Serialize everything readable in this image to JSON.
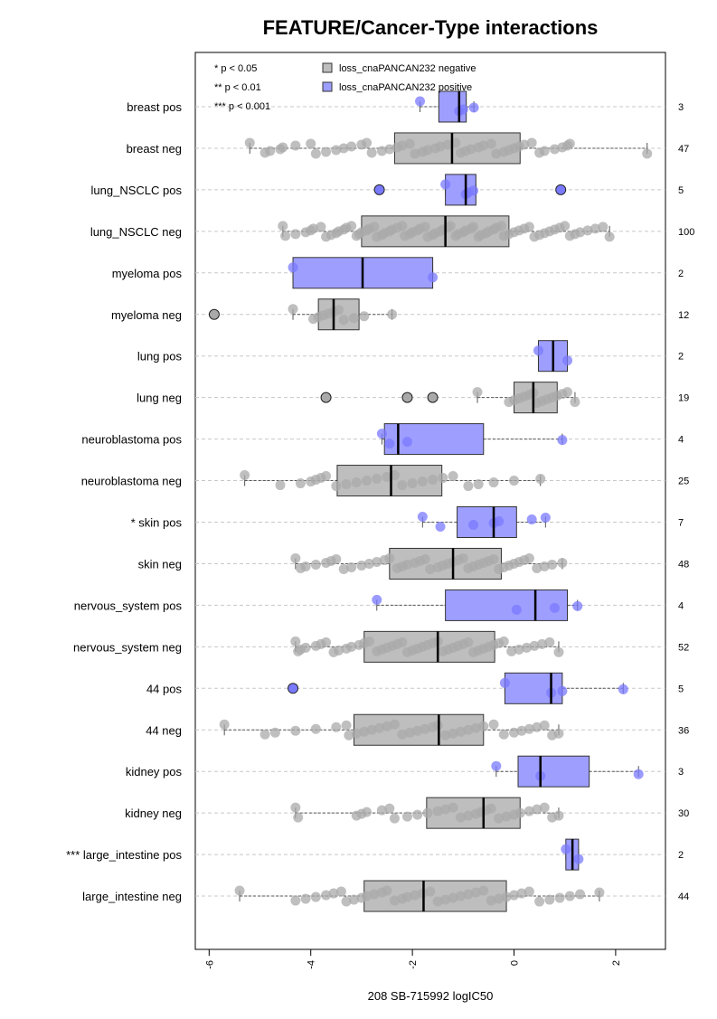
{
  "chart_data": {
    "type": "box",
    "title": "FEATURE/Cancer-Type interactions",
    "xlabel": "208 SB-715992 logIC50",
    "ylabel": "",
    "xlim": [
      -6.2,
      3.0
    ],
    "x_ticks": [
      "-6",
      "-4",
      "-2",
      "0",
      "2"
    ],
    "x_tick_values": [
      -6,
      -4,
      -2,
      0,
      2
    ],
    "grid": "horizontal dashed",
    "legend_position": "top-left",
    "significance_key": [
      "* p < 0.05",
      "** p < 0.01",
      "*** p < 0.001"
    ],
    "legend": [
      {
        "label": "loss_cnaPANCAN232 negative",
        "color": "#bebebe"
      },
      {
        "label": "loss_cnaPANCAN232 positive",
        "color": "#9e9eff"
      }
    ],
    "colors": {
      "negative": "#bebebe",
      "positive": "#9e9eff",
      "point_neg": "#a9a9a9",
      "point_pos": "#7a7aff"
    },
    "groups": [
      {
        "label": "breast pos",
        "n": "3",
        "kind": "pos",
        "q1": -1.48,
        "median": -1.08,
        "q3": -0.94,
        "wlo": -1.85,
        "whi": -0.79,
        "points": [
          -1.85,
          -1.08,
          -1.0,
          -0.79
        ],
        "outliers": []
      },
      {
        "label": "breast neg",
        "n": "47",
        "kind": "neg",
        "q1": -2.35,
        "median": -1.22,
        "q3": 0.12,
        "wlo": -5.2,
        "whi": 2.62,
        "points": [
          -5.2,
          -4.9,
          -4.8,
          -4.6,
          -4.55,
          -4.3,
          -4.0,
          -3.9,
          -3.7,
          -3.5,
          -3.35,
          -3.2,
          -3.0,
          -2.9,
          -2.8,
          -2.6,
          -2.45,
          -2.3,
          -2.2,
          -2.05,
          -1.95,
          -1.8,
          -1.7,
          -1.55,
          -1.45,
          -1.3,
          -1.15,
          -1.05,
          -0.95,
          -0.85,
          -0.7,
          -0.6,
          -0.45,
          -0.35,
          -0.2,
          -0.1,
          0.0,
          0.1,
          0.2,
          0.35,
          0.5,
          0.6,
          0.8,
          0.95,
          1.05,
          1.1,
          2.62
        ],
        "outliers": []
      },
      {
        "label": "lung_NSCLC pos",
        "n": "5",
        "kind": "pos",
        "q1": -1.35,
        "median": -0.95,
        "q3": -0.75,
        "wlo": -1.35,
        "whi": -0.75,
        "points": [
          -1.35,
          -0.95,
          -0.9,
          -0.8
        ],
        "outliers": [
          -2.65,
          0.92
        ]
      },
      {
        "label": "lung_NSCLC neg",
        "n": "100",
        "kind": "neg",
        "q1": -3.0,
        "median": -1.35,
        "q3": -0.1,
        "wlo": -4.55,
        "whi": 1.88,
        "points": [
          -4.55,
          -4.5,
          -4.3,
          -4.1,
          -4.0,
          -3.95,
          -3.8,
          -3.7,
          -3.6,
          -3.5,
          -3.45,
          -3.35,
          -3.3,
          -3.2,
          -3.1,
          -3.05,
          -3.0,
          -2.9,
          -2.85,
          -2.75,
          -2.7,
          -2.6,
          -2.55,
          -2.45,
          -2.4,
          -2.3,
          -2.2,
          -2.15,
          -2.05,
          -2.0,
          -1.9,
          -1.85,
          -1.75,
          -1.7,
          -1.6,
          -1.55,
          -1.45,
          -1.4,
          -1.3,
          -1.25,
          -1.15,
          -1.1,
          -1.0,
          -0.95,
          -0.85,
          -0.8,
          -0.7,
          -0.65,
          -0.55,
          -0.5,
          -0.4,
          -0.35,
          -0.25,
          -0.2,
          -0.1,
          0.0,
          0.1,
          0.2,
          0.3,
          0.4,
          0.5,
          0.6,
          0.7,
          0.8,
          0.9,
          1.0,
          1.1,
          1.2,
          1.3,
          1.45,
          1.6,
          1.75,
          1.88
        ],
        "outliers": []
      },
      {
        "label": "myeloma pos",
        "n": "2",
        "kind": "pos",
        "q1": -4.35,
        "median": -2.98,
        "q3": -1.6,
        "wlo": -4.35,
        "whi": -1.6,
        "points": [
          -4.35,
          -1.6
        ],
        "outliers": []
      },
      {
        "label": "myeloma neg",
        "n": "12",
        "kind": "neg",
        "q1": -3.85,
        "median": -3.55,
        "q3": -3.05,
        "wlo": -4.35,
        "whi": -2.4,
        "points": [
          -4.35,
          -3.95,
          -3.85,
          -3.75,
          -3.65,
          -3.55,
          -3.45,
          -3.35,
          -3.15,
          -2.95,
          -2.4
        ],
        "outliers": [
          -5.9
        ]
      },
      {
        "label": "lung pos",
        "n": "2",
        "kind": "pos",
        "q1": 0.48,
        "median": 0.77,
        "q3": 1.05,
        "wlo": 0.48,
        "whi": 1.05,
        "points": [
          0.48,
          1.05
        ],
        "outliers": []
      },
      {
        "label": "lung neg",
        "n": "19",
        "kind": "neg",
        "q1": 0.0,
        "median": 0.38,
        "q3": 0.85,
        "wlo": -0.72,
        "whi": 1.2,
        "points": [
          -0.72,
          -0.1,
          0.0,
          0.1,
          0.2,
          0.3,
          0.38,
          0.45,
          0.55,
          0.65,
          0.75,
          0.85,
          0.95,
          1.05,
          1.2
        ],
        "outliers": [
          -3.7,
          -2.1,
          -1.6
        ]
      },
      {
        "label": "neuroblastoma pos",
        "n": "4",
        "kind": "pos",
        "q1": -2.55,
        "median": -2.28,
        "q3": -0.6,
        "wlo": -2.6,
        "whi": 0.95,
        "points": [
          -2.6,
          -2.45,
          -2.1,
          0.95
        ],
        "outliers": []
      },
      {
        "label": "neuroblastoma neg",
        "n": "25",
        "kind": "neg",
        "q1": -3.48,
        "median": -2.42,
        "q3": -1.42,
        "wlo": -5.3,
        "whi": 0.52,
        "points": [
          -5.3,
          -4.6,
          -4.2,
          -4.0,
          -3.9,
          -3.8,
          -3.7,
          -3.5,
          -3.3,
          -3.1,
          -2.9,
          -2.7,
          -2.5,
          -2.35,
          -2.2,
          -2.0,
          -1.8,
          -1.6,
          -1.4,
          -1.2,
          -0.9,
          -0.7,
          -0.4,
          0.0,
          0.52
        ],
        "outliers": []
      },
      {
        "label": "* skin pos",
        "n": "7",
        "kind": "pos",
        "q1": -1.12,
        "median": -0.4,
        "q3": 0.05,
        "wlo": -1.8,
        "whi": 0.62,
        "points": [
          -1.8,
          -1.45,
          -0.8,
          -0.4,
          -0.3,
          0.35,
          0.62
        ],
        "outliers": []
      },
      {
        "label": "skin neg",
        "n": "48",
        "kind": "neg",
        "q1": -2.45,
        "median": -1.2,
        "q3": -0.25,
        "wlo": -4.3,
        "whi": 0.95,
        "points": [
          -4.3,
          -4.2,
          -4.1,
          -3.9,
          -3.7,
          -3.6,
          -3.5,
          -3.35,
          -3.2,
          -3.0,
          -2.85,
          -2.7,
          -2.55,
          -2.45,
          -2.3,
          -2.2,
          -2.1,
          -1.95,
          -1.85,
          -1.75,
          -1.65,
          -1.5,
          -1.4,
          -1.3,
          -1.2,
          -1.1,
          -1.0,
          -0.9,
          -0.8,
          -0.7,
          -0.6,
          -0.5,
          -0.4,
          -0.3,
          -0.2,
          -0.1,
          0.0,
          0.1,
          0.2,
          0.3,
          0.45,
          0.6,
          0.75,
          0.95
        ],
        "outliers": []
      },
      {
        "label": "nervous_system pos",
        "n": "4",
        "kind": "pos",
        "q1": -1.35,
        "median": 0.42,
        "q3": 1.05,
        "wlo": -2.7,
        "whi": 1.25,
        "points": [
          -2.7,
          0.05,
          0.8,
          1.25
        ],
        "outliers": []
      },
      {
        "label": "nervous_system neg",
        "n": "52",
        "kind": "neg",
        "q1": -2.95,
        "median": -1.5,
        "q3": -0.38,
        "wlo": -4.3,
        "whi": 0.88,
        "points": [
          -4.3,
          -4.25,
          -4.2,
          -4.1,
          -3.9,
          -3.8,
          -3.7,
          -3.55,
          -3.45,
          -3.3,
          -3.2,
          -3.05,
          -2.95,
          -2.85,
          -2.7,
          -2.6,
          -2.5,
          -2.4,
          -2.3,
          -2.2,
          -2.1,
          -2.0,
          -1.9,
          -1.8,
          -1.7,
          -1.6,
          -1.5,
          -1.4,
          -1.3,
          -1.2,
          -1.1,
          -1.0,
          -0.9,
          -0.8,
          -0.7,
          -0.6,
          -0.5,
          -0.4,
          -0.3,
          -0.2,
          -0.05,
          0.1,
          0.25,
          0.4,
          0.55,
          0.7,
          0.88
        ],
        "outliers": []
      },
      {
        "label": "44 pos",
        "n": "5",
        "kind": "pos",
        "q1": -0.18,
        "median": 0.73,
        "q3": 0.95,
        "wlo": -0.18,
        "whi": 2.15,
        "points": [
          -0.18,
          0.73,
          0.95,
          2.15
        ],
        "outliers": [
          -4.35
        ]
      },
      {
        "label": "44 neg",
        "n": "36",
        "kind": "neg",
        "q1": -3.15,
        "median": -1.48,
        "q3": -0.6,
        "wlo": -5.7,
        "whi": 0.88,
        "points": [
          -5.7,
          -4.9,
          -4.7,
          -4.3,
          -3.9,
          -3.5,
          -3.3,
          -3.25,
          -3.1,
          -2.95,
          -2.8,
          -2.65,
          -2.5,
          -2.35,
          -2.2,
          -2.05,
          -1.9,
          -1.75,
          -1.6,
          -1.5,
          -1.35,
          -1.2,
          -1.05,
          -0.9,
          -0.75,
          -0.6,
          -0.4,
          -0.2,
          0.0,
          0.15,
          0.3,
          0.45,
          0.6,
          0.75,
          0.88
        ],
        "outliers": []
      },
      {
        "label": "kidney pos",
        "n": "3",
        "kind": "pos",
        "q1": 0.08,
        "median": 0.52,
        "q3": 1.48,
        "wlo": -0.35,
        "whi": 2.45,
        "points": [
          -0.35,
          0.52,
          2.45
        ],
        "outliers": []
      },
      {
        "label": "kidney neg",
        "n": "30",
        "kind": "neg",
        "q1": -1.72,
        "median": -0.6,
        "q3": 0.12,
        "wlo": -4.3,
        "whi": 0.88,
        "points": [
          -4.3,
          -4.25,
          -3.1,
          -3.0,
          -2.9,
          -2.6,
          -2.45,
          -2.35,
          -2.1,
          -1.9,
          -1.7,
          -1.5,
          -1.35,
          -1.2,
          -1.05,
          -0.9,
          -0.75,
          -0.65,
          -0.55,
          -0.45,
          -0.3,
          -0.15,
          0.0,
          0.12,
          0.3,
          0.45,
          0.6,
          0.75,
          0.88
        ],
        "outliers": []
      },
      {
        "label": "*** large_intestine pos",
        "n": "2",
        "kind": "pos",
        "q1": 1.02,
        "median": 1.15,
        "q3": 1.27,
        "wlo": 1.02,
        "whi": 1.27,
        "points": [
          1.02,
          1.27
        ],
        "outliers": []
      },
      {
        "label": "large_intestine neg",
        "n": "44",
        "kind": "neg",
        "q1": -2.95,
        "median": -1.78,
        "q3": -0.15,
        "wlo": -5.4,
        "whi": 1.68,
        "points": [
          -5.4,
          -4.3,
          -4.1,
          -3.9,
          -3.7,
          -3.55,
          -3.4,
          -3.3,
          -3.15,
          -3.0,
          -2.9,
          -2.75,
          -2.6,
          -2.5,
          -2.35,
          -2.2,
          -2.1,
          -1.95,
          -1.8,
          -1.65,
          -1.5,
          -1.35,
          -1.2,
          -1.05,
          -0.9,
          -0.75,
          -0.6,
          -0.45,
          -0.3,
          -0.15,
          0.0,
          0.15,
          0.3,
          0.5,
          0.7,
          0.9,
          1.1,
          1.3,
          1.68
        ],
        "outliers": []
      }
    ]
  }
}
